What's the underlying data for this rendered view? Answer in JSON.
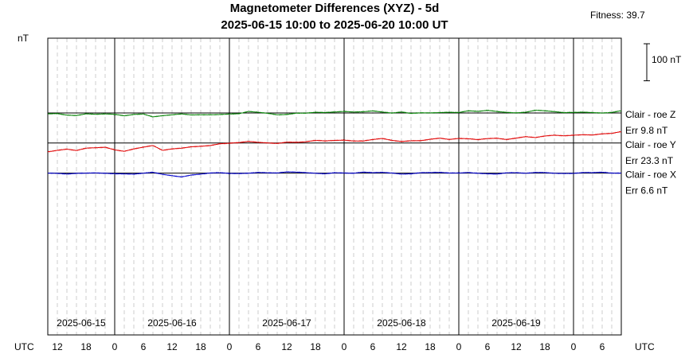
{
  "chart_data": {
    "type": "line",
    "title": "Magnetometer Differences (XYZ) - 5d",
    "subtitle": "2025-06-15 10:00 to 2025-06-20 10:00 UT",
    "fitness": "Fitness: 39.7",
    "ylabel": "nT",
    "scale_label": "100 nT",
    "xlabel_left": "UTC",
    "xlabel_right": "UTC",
    "x_tick_labels": [
      "12",
      "18",
      "0",
      "6",
      "12",
      "18",
      "0",
      "6",
      "12",
      "18",
      "0",
      "6",
      "12",
      "18",
      "0",
      "6",
      "12",
      "18",
      "0",
      "6"
    ],
    "date_labels": [
      "2025-06-15",
      "2025-06-16",
      "2025-06-17",
      "2025-06-18",
      "2025-06-19"
    ],
    "x_range_hours": [
      0,
      120
    ],
    "series": [
      {
        "name": "Clair - roe Z",
        "error": "Err 9.8 nT",
        "color": "#008000",
        "baseline_nT": 0,
        "hours": [
          0,
          2,
          4,
          6,
          8,
          10,
          12,
          14,
          16,
          18,
          20,
          22,
          24,
          26,
          28,
          30,
          32,
          34,
          36,
          38,
          40,
          42,
          44,
          46,
          48,
          50,
          52,
          54,
          56,
          58,
          60,
          62,
          64,
          66,
          68,
          70,
          72,
          74,
          76,
          78,
          80,
          82,
          84,
          86,
          88,
          90,
          92,
          94,
          96,
          98,
          100,
          102,
          104,
          106,
          108,
          110,
          112,
          114,
          116,
          118,
          120
        ],
        "values": [
          -3,
          -1,
          -6,
          -8,
          -3,
          -6,
          -5,
          -6,
          -10,
          -4,
          -2,
          -13,
          -10,
          -8,
          -5,
          -8,
          -6,
          -5,
          -4,
          -3,
          -3,
          4,
          1,
          -2,
          -6,
          -4,
          1,
          0,
          2,
          0,
          2,
          5,
          4,
          6,
          9,
          4,
          -1,
          2,
          -3,
          0,
          1,
          3,
          4,
          2,
          7,
          4,
          8,
          5,
          3,
          2,
          4,
          10,
          7,
          3,
          0,
          2,
          4,
          3,
          1,
          2,
          7
        ]
      },
      {
        "name": "Clair - roe Y",
        "error": "Err 23.3 nT",
        "color": "#e00000",
        "baseline_nT": -108,
        "hours": [
          0,
          2,
          4,
          6,
          8,
          10,
          12,
          14,
          16,
          18,
          20,
          22,
          24,
          26,
          28,
          30,
          32,
          34,
          36,
          38,
          40,
          42,
          44,
          46,
          48,
          50,
          52,
          54,
          56,
          58,
          60,
          62,
          64,
          66,
          68,
          70,
          72,
          74,
          76,
          78,
          80,
          82,
          84,
          86,
          88,
          90,
          92,
          94,
          96,
          98,
          100,
          102,
          104,
          106,
          108,
          110,
          112,
          114,
          116,
          118,
          120
        ],
        "values": [
          -30,
          -25,
          -22,
          -28,
          -20,
          -18,
          -15,
          -23,
          -28,
          -20,
          -15,
          -10,
          -28,
          -22,
          -18,
          -12,
          -10,
          -8,
          -3,
          -2,
          0,
          5,
          3,
          2,
          0,
          4,
          2,
          3,
          8,
          7,
          10,
          12,
          9,
          8,
          12,
          15,
          8,
          5,
          9,
          10,
          15,
          18,
          12,
          15,
          14,
          12,
          17,
          19,
          14,
          18,
          22,
          18,
          24,
          28,
          27,
          30,
          31,
          29,
          32,
          33,
          40
        ]
      },
      {
        "name": "Clair - roe X",
        "error": "Err 6.6 nT",
        "color": "#0000cc",
        "baseline_nT": -216,
        "hours": [
          0,
          2,
          4,
          6,
          8,
          10,
          12,
          14,
          16,
          18,
          20,
          22,
          24,
          26,
          28,
          30,
          32,
          34,
          36,
          38,
          40,
          42,
          44,
          46,
          48,
          50,
          52,
          54,
          56,
          58,
          60,
          62,
          64,
          66,
          68,
          70,
          72,
          74,
          76,
          78,
          80,
          82,
          84,
          86,
          88,
          90,
          92,
          94,
          96,
          98,
          100,
          102,
          104,
          106,
          108,
          110,
          112,
          114,
          116,
          118,
          120
        ],
        "values": [
          0,
          -2,
          -5,
          -2,
          0,
          2,
          1,
          -1,
          -3,
          -5,
          -2,
          2,
          -4,
          -8,
          -12,
          -6,
          -4,
          -1,
          0,
          -2,
          -1,
          1,
          4,
          2,
          0,
          3,
          2,
          1,
          0,
          -1,
          3,
          1,
          -1,
          2,
          0,
          2,
          1,
          -2,
          -1,
          2,
          1,
          1,
          -1,
          0,
          3,
          1,
          -1,
          -3,
          0,
          0,
          -2,
          2,
          3,
          1,
          0,
          -1,
          1,
          0,
          2,
          0,
          1
        ]
      }
    ]
  }
}
